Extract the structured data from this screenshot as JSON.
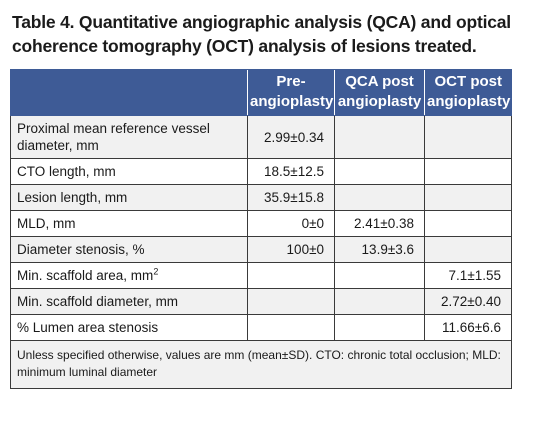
{
  "caption": "Table 4. Quantitative angiographic analysis (QCA) and optical coherence tomography (OCT) analysis of lesions treated.",
  "columns": [
    {
      "label": "",
      "lines": []
    },
    {
      "label": "Pre-angioplasty",
      "lines": [
        "Pre-",
        "angioplasty"
      ]
    },
    {
      "label": "QCA post angioplasty",
      "lines": [
        "QCA post",
        "angioplasty"
      ]
    },
    {
      "label": "OCT post angioplasty",
      "lines": [
        "OCT post",
        "angioplasty"
      ]
    }
  ],
  "rows": [
    {
      "label": "Proximal mean reference vessel diameter, mm",
      "pre": "2.99±0.34",
      "qca": "",
      "oct": ""
    },
    {
      "label": "CTO length, mm",
      "pre": "18.5±12.5",
      "qca": "",
      "oct": ""
    },
    {
      "label": "Lesion length, mm",
      "pre": "35.9±15.8",
      "qca": "",
      "oct": ""
    },
    {
      "label": "MLD, mm",
      "pre": "0±0",
      "qca": "2.41±0.38",
      "oct": ""
    },
    {
      "label": "Diameter stenosis, %",
      "pre": "100±0",
      "qca": "13.9±3.6",
      "oct": ""
    },
    {
      "label": "Min. scaffold area, mm",
      "label_sup": "2",
      "pre": "",
      "qca": "",
      "oct": "7.1±1.55"
    },
    {
      "label": "Min. scaffold diameter, mm",
      "pre": "",
      "qca": "",
      "oct": "2.72±0.40"
    },
    {
      "label": "% Lumen area stenosis",
      "pre": "",
      "qca": "",
      "oct": "11.66±6.6"
    }
  ],
  "footnote": "Unless specified otherwise, values are mm (mean±SD). CTO: chronic total occlusion; MLD: minimum luminal diameter"
}
